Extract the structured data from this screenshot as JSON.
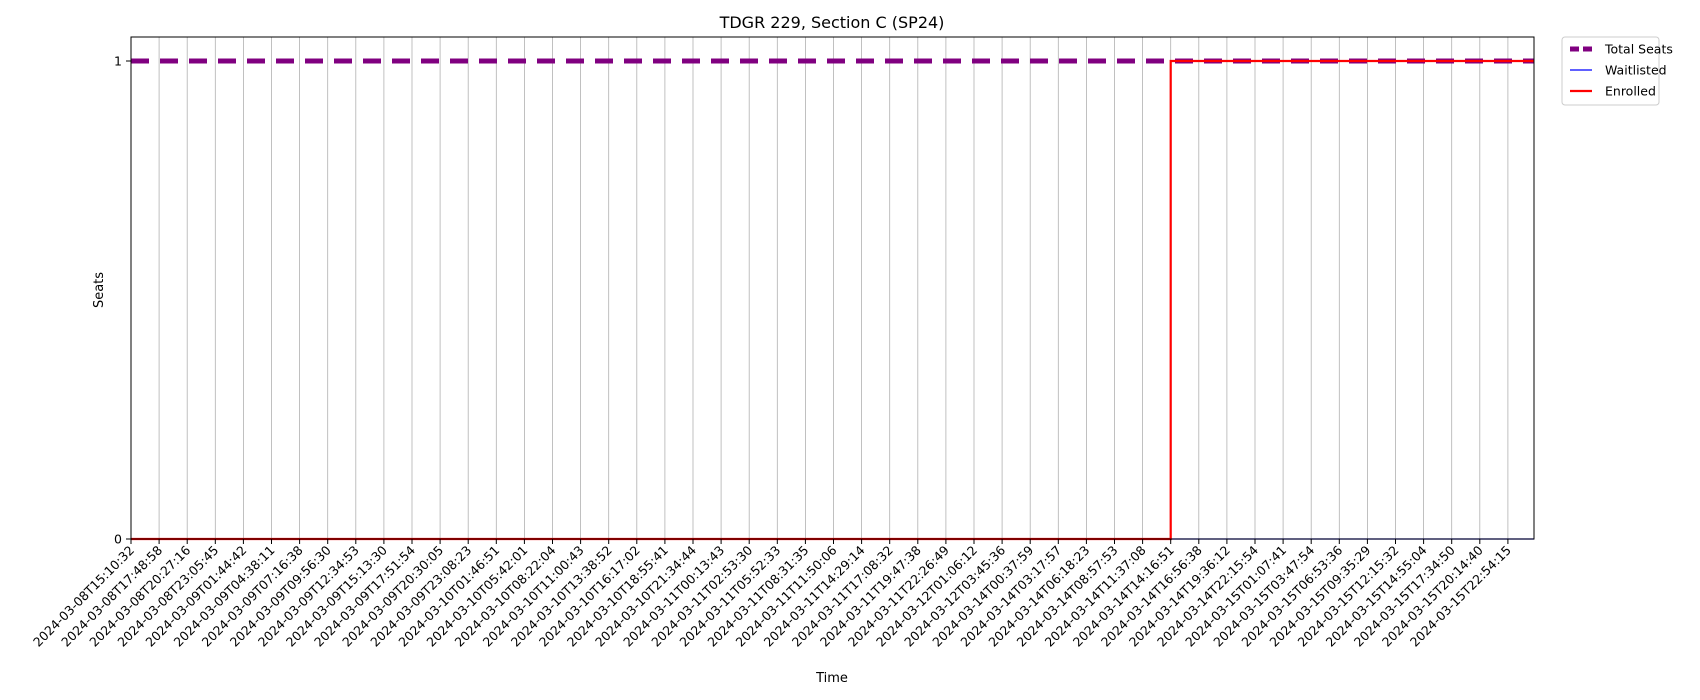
{
  "chart_data": {
    "type": "line",
    "title": "TDGR 229, Section C (SP24)",
    "xlabel": "Time",
    "ylabel": "Seats",
    "ylim": [
      0,
      1
    ],
    "yticks": [
      0,
      1
    ],
    "grid": "vertical",
    "legend_position": "outside top-right",
    "x": [
      "2024-03-08T15:10:32",
      "2024-03-08T17:48:58",
      "2024-03-08T20:27:16",
      "2024-03-08T23:05:45",
      "2024-03-09T01:44:42",
      "2024-03-09T04:38:11",
      "2024-03-09T07:16:38",
      "2024-03-09T09:56:30",
      "2024-03-09T12:34:53",
      "2024-03-09T15:13:30",
      "2024-03-09T17:51:54",
      "2024-03-09T20:30:05",
      "2024-03-09T23:08:23",
      "2024-03-10T01:46:51",
      "2024-03-10T05:42:01",
      "2024-03-10T08:22:04",
      "2024-03-10T11:00:43",
      "2024-03-10T13:38:52",
      "2024-03-10T16:17:02",
      "2024-03-10T18:55:41",
      "2024-03-10T21:34:44",
      "2024-03-11T00:13:43",
      "2024-03-11T02:53:30",
      "2024-03-11T05:52:33",
      "2024-03-11T08:31:35",
      "2024-03-11T11:50:06",
      "2024-03-11T14:29:14",
      "2024-03-11T17:08:32",
      "2024-03-11T19:47:38",
      "2024-03-11T22:26:49",
      "2024-03-12T01:06:12",
      "2024-03-12T03:45:36",
      "2024-03-14T00:37:59",
      "2024-03-14T03:17:57",
      "2024-03-14T06:18:23",
      "2024-03-14T08:57:53",
      "2024-03-14T11:37:08",
      "2024-03-14T14:16:51",
      "2024-03-14T16:56:38",
      "2024-03-14T19:36:12",
      "2024-03-14T22:15:54",
      "2024-03-15T01:07:41",
      "2024-03-15T03:47:54",
      "2024-03-15T06:53:36",
      "2024-03-15T09:35:29",
      "2024-03-15T12:15:32",
      "2024-03-15T14:55:04",
      "2024-03-15T17:34:50",
      "2024-03-15T20:14:40",
      "2024-03-15T22:54:15"
    ],
    "series": [
      {
        "name": "Total Seats",
        "color": "#800080",
        "style": "dashed",
        "values": [
          1,
          1,
          1,
          1,
          1,
          1,
          1,
          1,
          1,
          1,
          1,
          1,
          1,
          1,
          1,
          1,
          1,
          1,
          1,
          1,
          1,
          1,
          1,
          1,
          1,
          1,
          1,
          1,
          1,
          1,
          1,
          1,
          1,
          1,
          1,
          1,
          1,
          1,
          1,
          1,
          1,
          1,
          1,
          1,
          1,
          1,
          1,
          1,
          1,
          1
        ]
      },
      {
        "name": "Waitlisted",
        "color": "#0000ff",
        "style": "solid",
        "values": [
          0,
          0,
          0,
          0,
          0,
          0,
          0,
          0,
          0,
          0,
          0,
          0,
          0,
          0,
          0,
          0,
          0,
          0,
          0,
          0,
          0,
          0,
          0,
          0,
          0,
          0,
          0,
          0,
          0,
          0,
          0,
          0,
          0,
          0,
          0,
          0,
          0,
          0,
          0,
          0,
          0,
          0,
          0,
          0,
          0,
          0,
          0,
          0,
          0,
          0
        ]
      },
      {
        "name": "Enrolled",
        "color": "#ff0000",
        "style": "solid",
        "values": [
          0,
          0,
          0,
          0,
          0,
          0,
          0,
          0,
          0,
          0,
          0,
          0,
          0,
          0,
          0,
          0,
          0,
          0,
          0,
          0,
          0,
          0,
          0,
          0,
          0,
          0,
          0,
          0,
          0,
          0,
          0,
          0,
          0,
          0,
          0,
          0,
          0,
          1,
          1,
          1,
          1,
          1,
          1,
          1,
          1,
          1,
          1,
          1,
          1,
          1
        ]
      }
    ]
  }
}
